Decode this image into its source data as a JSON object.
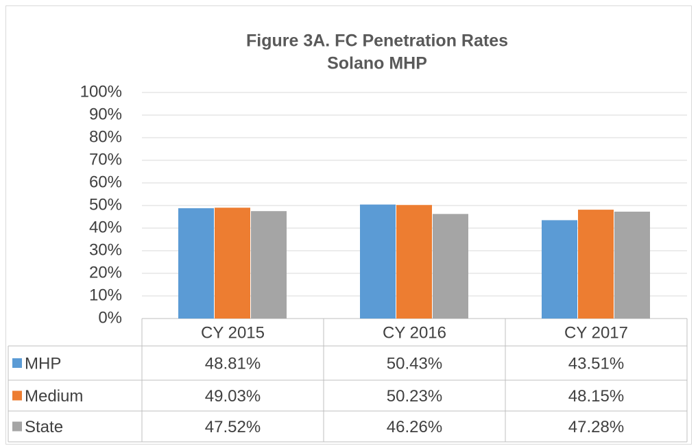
{
  "chart_data": {
    "type": "bar",
    "title": "Figure 3A. FC Penetration Rates",
    "subtitle": "Solano MHP",
    "categories": [
      "CY 2015",
      "CY 2016",
      "CY 2017"
    ],
    "series": [
      {
        "name": "MHP",
        "color": "#5b9bd5",
        "values": [
          48.81,
          50.43,
          43.51
        ],
        "value_labels": [
          "48.81%",
          "50.43%",
          "43.51%"
        ]
      },
      {
        "name": "Medium",
        "color": "#ed7d31",
        "values": [
          49.03,
          50.23,
          48.15
        ],
        "value_labels": [
          "49.03%",
          "50.23%",
          "48.15%"
        ]
      },
      {
        "name": "State",
        "color": "#a5a5a5",
        "values": [
          47.52,
          46.26,
          47.28
        ],
        "value_labels": [
          "47.52%",
          "46.26%",
          "47.28%"
        ]
      }
    ],
    "ylim": [
      0,
      100
    ],
    "yticks": [
      {
        "value": 0,
        "label": "0%"
      },
      {
        "value": 10,
        "label": "10%"
      },
      {
        "value": 20,
        "label": "20%"
      },
      {
        "value": 30,
        "label": "30%"
      },
      {
        "value": 40,
        "label": "40%"
      },
      {
        "value": 50,
        "label": "50%"
      },
      {
        "value": 60,
        "label": "60%"
      },
      {
        "value": 70,
        "label": "70%"
      },
      {
        "value": 80,
        "label": "80%"
      },
      {
        "value": 90,
        "label": "90%"
      },
      {
        "value": 100,
        "label": "100%"
      }
    ],
    "grid": true
  }
}
